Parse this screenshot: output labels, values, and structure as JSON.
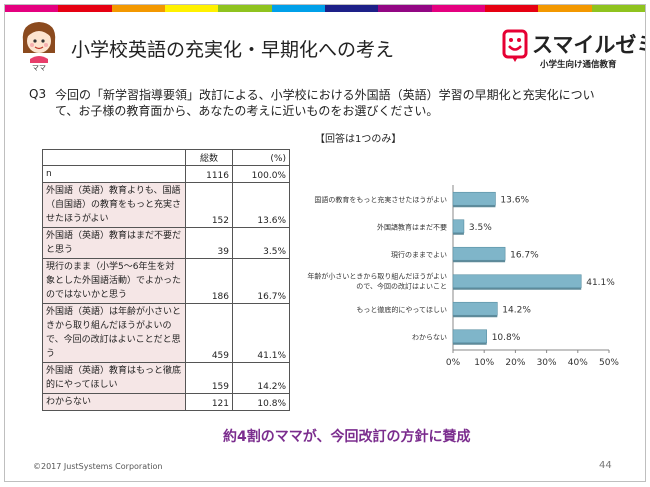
{
  "header": {
    "stripe_colors": [
      "#e4007f",
      "#e60012",
      "#f39800",
      "#fff100",
      "#8fc31f",
      "#00a0e9",
      "#1d2088",
      "#920783",
      "#e4007f",
      "#e60012",
      "#f39800",
      "#8fc31f"
    ],
    "mascot_label": "ママ",
    "title": "小学校英語の充実化・早期化への考え",
    "logo_text": "スマイルゼミ",
    "logo_sub": "小学生向け通信教育",
    "logo_color": "#e60033"
  },
  "question": {
    "number": "Q3",
    "text": "今回の「新学習指導要領」改訂による、小学校における外国語（英語）学習の早期化と充実化について、お子様の教育面から、あなたの考えに近いものをお選びください。",
    "note": "【回答は1つのみ】"
  },
  "table": {
    "header_count": "総数",
    "header_pct": "(%)",
    "rows": [
      {
        "label": "n",
        "count": "1116",
        "pct": "100.0%"
      },
      {
        "label": "外国語（英語）教育よりも、国語（自国語）の教育をもっと充実させたほうがよい",
        "count": "152",
        "pct": "13.6%"
      },
      {
        "label": "外国語（英語）教育はまだ不要だと思う",
        "count": "39",
        "pct": "3.5%"
      },
      {
        "label": "現行のまま（小学5～6年生を対象とした外国語活動）でよかったのではないかと思う",
        "count": "186",
        "pct": "16.7%"
      },
      {
        "label": "外国語（英語）は年齢が小さいときから取り組んだほうがよいので、今回の改訂はよいことだと思う",
        "count": "459",
        "pct": "41.1%"
      },
      {
        "label": "外国語（英語）教育はもっと徹底的にやってほしい",
        "count": "159",
        "pct": "14.2%"
      },
      {
        "label": "わからない",
        "count": "121",
        "pct": "10.8%"
      }
    ]
  },
  "chart_data": {
    "type": "bar",
    "orientation": "horizontal",
    "categories": [
      "国語の教育をもっと充実させたほうがよい",
      "外国語教育はまだ不要",
      "現行のままでよい",
      "年齢が小さいときから取り組んだほうがよいので、今回の改訂はよいこと",
      "もっと徹底的にやってほしい",
      "わからない"
    ],
    "values": [
      13.6,
      3.5,
      16.7,
      41.1,
      14.2,
      10.8
    ],
    "value_labels": [
      "13.6%",
      "3.5%",
      "16.7%",
      "41.1%",
      "14.2%",
      "10.8%"
    ],
    "xlim": [
      0,
      50
    ],
    "x_ticks": [
      "0%",
      "10%",
      "20%",
      "30%",
      "40%",
      "50%"
    ],
    "bar_color": "#7fb5c9",
    "grid": false
  },
  "footer": {
    "conclusion": "約4割のママが、今回改訂の方針に賛成",
    "copyright": "©2017 JustSystems Corporation",
    "page_number": "44"
  }
}
